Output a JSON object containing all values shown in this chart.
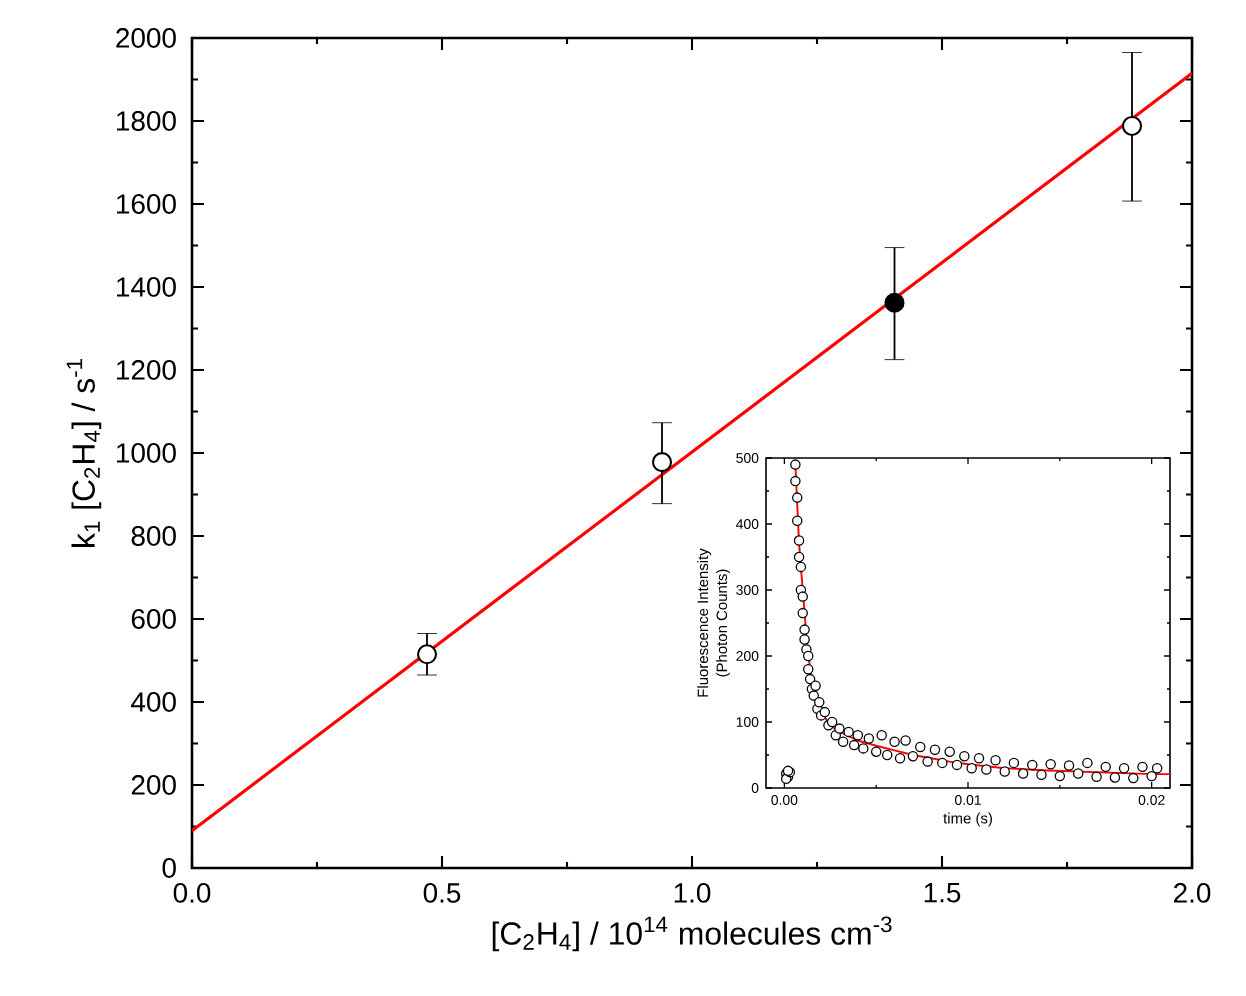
{
  "chart_data": [
    {
      "type": "scatter",
      "xlabel": "[C$_{2}$H$_{4}$] / 10$^{14}$ molecules cm$^{-3}$",
      "ylabel": "k$_{1}$ [C$_{2}$H$_{4}$] / s$^{-1}$",
      "xlim": [
        0,
        2
      ],
      "ylim": [
        0,
        2000
      ],
      "xticks": [
        {
          "value": 0,
          "label": "0.0"
        },
        {
          "value": 0.5,
          "label": "0.5"
        },
        {
          "value": 1,
          "label": "1.0"
        },
        {
          "value": 1.5,
          "label": "1.5"
        },
        {
          "value": 2,
          "label": "2.0"
        }
      ],
      "yticks": [
        0,
        200,
        400,
        600,
        800,
        1000,
        1200,
        1400,
        1600,
        1800,
        2000
      ],
      "marker": "circle",
      "series": [
        {
          "type": "line",
          "x": [
            0,
            2
          ],
          "values": [
            90,
            1915
          ],
          "color": "#ff0000",
          "marker": "none"
        },
        {
          "x": [
            0.47,
            0.94,
            1.405,
            1.88
          ],
          "values": [
            515,
            978,
            1362,
            1788
          ],
          "color": "#000000",
          "colors": [
            "#ffffff",
            "#ffffff",
            "#000000",
            "#ffffff"
          ],
          "errors": [
            [
              465,
              565
            ],
            [
              878,
              1073
            ],
            [
              1225,
              1495
            ],
            [
              1607,
              1965
            ]
          ]
        }
      ]
    },
    {
      "type": "scatter",
      "xlabel": "time (s)",
      "ylabel": "Fluorescence Intensity\n(Photon Counts)",
      "xlim": [
        -0.001,
        0.021
      ],
      "ylim": [
        0,
        500
      ],
      "xticks": [
        {
          "value": 0,
          "label": "0.00"
        },
        {
          "value": 0.01,
          "label": "0.01"
        },
        {
          "value": 0.02,
          "label": "0.02"
        }
      ],
      "yticks": [
        0,
        100,
        200,
        300,
        400,
        500
      ],
      "marker": "circle",
      "series": [
        {
          "x": [
            0.0001,
            0.0002,
            0.0001,
            0.0003,
            0.0002,
            0.0006,
            0.0006,
            0.0007,
            0.0007,
            0.0008,
            0.0008,
            0.0009,
            0.0009,
            0.001,
            0.001,
            0.0011,
            0.0011,
            0.0012,
            0.0013,
            0.0013,
            0.0014,
            0.0015,
            0.0016,
            0.0017,
            0.0018,
            0.0019,
            0.002,
            0.0022,
            0.0024,
            0.0026,
            0.0028,
            0.003,
            0.0032,
            0.0035,
            0.0038,
            0.004,
            0.0043,
            0.0046,
            0.005,
            0.0053,
            0.0056,
            0.006,
            0.0063,
            0.0066,
            0.007,
            0.0074,
            0.0078,
            0.0082,
            0.0086,
            0.009,
            0.0094,
            0.0098,
            0.0102,
            0.0106,
            0.011,
            0.0115,
            0.012,
            0.0125,
            0.013,
            0.0135,
            0.014,
            0.0145,
            0.015,
            0.0155,
            0.016,
            0.0165,
            0.017,
            0.0175,
            0.018,
            0.0185,
            0.019,
            0.0195,
            0.02,
            0.0203
          ],
          "values": [
            22,
            17,
            14,
            24,
            26,
            490,
            465,
            440,
            405,
            375,
            350,
            335,
            300,
            290,
            265,
            240,
            225,
            210,
            200,
            180,
            165,
            150,
            140,
            155,
            120,
            130,
            110,
            115,
            95,
            100,
            80,
            90,
            70,
            85,
            65,
            80,
            60,
            75,
            55,
            80,
            50,
            70,
            45,
            72,
            48,
            62,
            40,
            58,
            38,
            55,
            35,
            48,
            30,
            45,
            28,
            42,
            25,
            38,
            22,
            35,
            20,
            36,
            18,
            34,
            22,
            38,
            17,
            32,
            16,
            30,
            15,
            32,
            18,
            30
          ],
          "color": "#000000"
        },
        {
          "type": "line",
          "x": [
            0.0006,
            0.0008,
            0.001,
            0.0012,
            0.0014,
            0.0016,
            0.002,
            0.0025,
            0.003,
            0.004,
            0.005,
            0.006,
            0.007,
            0.008,
            0.009,
            0.01,
            0.012,
            0.014,
            0.016,
            0.018,
            0.02,
            0.021
          ],
          "values": [
            490,
            370,
            300,
            230,
            180,
            150,
            115,
            95,
            85,
            72,
            64,
            57,
            50,
            45,
            40,
            36,
            30,
            27,
            25,
            23,
            21,
            21
          ],
          "color": "#ff0000",
          "marker": "none"
        }
      ]
    }
  ]
}
